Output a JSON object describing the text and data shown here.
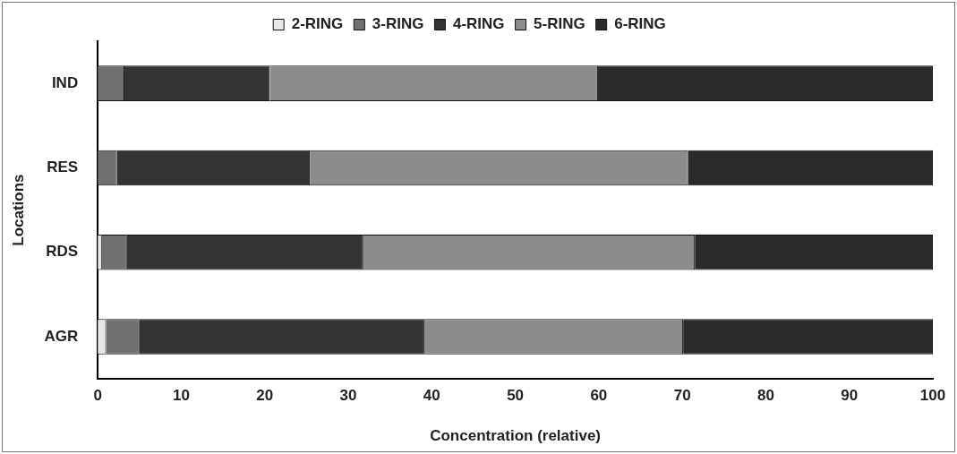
{
  "chart_data": {
    "type": "bar",
    "orientation": "horizontal",
    "stacked": true,
    "xlabel": "Concentration (relative)",
    "ylabel": "Locations",
    "categories": [
      "IND",
      "RES",
      "RDS",
      "AGR"
    ],
    "series": [
      {
        "name": "2-RING",
        "color": "#e8e8e8",
        "values": [
          0,
          0,
          0.5,
          1.0
        ]
      },
      {
        "name": "3-RING",
        "color": "#707070",
        "values": [
          3.2,
          2.3,
          3.0,
          4.0
        ]
      },
      {
        "name": "4-RING",
        "color": "#333333",
        "values": [
          17.4,
          23.1,
          28.3,
          34.1
        ]
      },
      {
        "name": "5-RING",
        "color": "#8c8c8c",
        "values": [
          39.3,
          45.3,
          39.7,
          31.0
        ]
      },
      {
        "name": "6-RING",
        "color": "#2a2a2a",
        "values": [
          40.1,
          29.3,
          28.5,
          29.9
        ]
      }
    ],
    "xlim": [
      0,
      100
    ],
    "xticks": [
      0,
      10,
      20,
      30,
      40,
      50,
      60,
      70,
      80,
      90,
      100
    ],
    "legend": "top",
    "grid": false
  }
}
